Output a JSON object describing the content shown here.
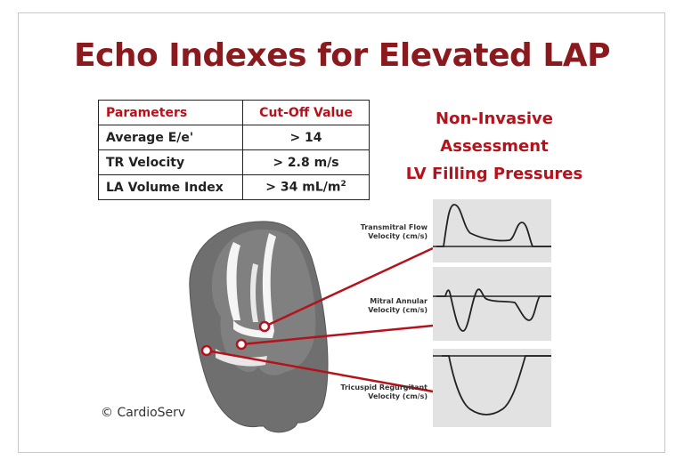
{
  "title": "Echo Indexes for Elevated LAP",
  "table": {
    "headers": [
      "Parameters",
      "Cut-Off Value"
    ],
    "rows": [
      {
        "param": "Average E/e'",
        "value": "> 14",
        "unit_sup": ""
      },
      {
        "param": "TR Velocity",
        "value": "> 2.8 m/s",
        "unit_sup": ""
      },
      {
        "param": "LA Volume Index",
        "value": "> 34  mL/m",
        "unit_sup": "2"
      }
    ]
  },
  "side_title": [
    "Non-Invasive",
    "Assessment",
    "LV Filling Pressures"
  ],
  "waveforms": {
    "transmitral": [
      "Transmitral Flow",
      "Velocity (cm/s)"
    ],
    "mitral_annular": [
      "Mitral Annular",
      "Velocity (cm/s)"
    ],
    "tricuspid": [
      "Tricuspid Regurgitant",
      "Velocity (cm/s)"
    ]
  },
  "copyright": "© CardioServ",
  "colors": {
    "title": "#8b1a1f",
    "accent_red": "#b5121b",
    "heart_gray": "#707070",
    "panel_bg": "#e2e2e2"
  }
}
